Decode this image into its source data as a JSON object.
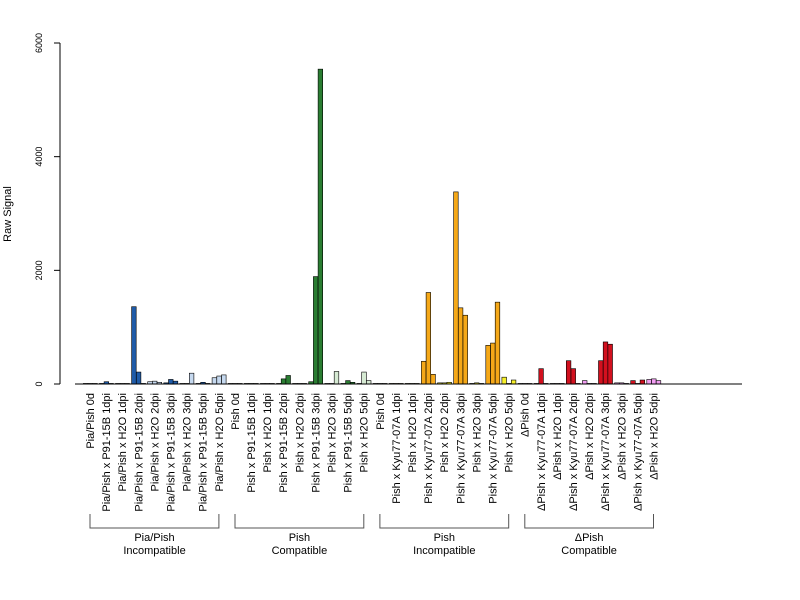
{
  "chart_data": {
    "type": "bar",
    "ylabel": "Raw Signal",
    "xlabel": "",
    "ylim": [
      0,
      6000
    ],
    "yticks": [
      0,
      2000,
      4000,
      6000
    ],
    "ytick_labels": [
      "0",
      "2000",
      "4000",
      "6000"
    ],
    "grid": false,
    "categories": [
      "Pia/Pish 0d",
      "Pia/Pish x P91-15B 1dpi",
      "Pia/Pish x H2O 1dpi",
      "Pia/Pish x P91-15B 2dpi",
      "Pia/Pish x H2O 2dpi",
      "Pia/Pish x P91-15B 3dpi",
      "Pia/Pish x H2O 3dpi",
      "Pia/Pish x P91-15B 5dpi",
      "Pia/Pish x H2O 5dpi",
      "Pish 0d",
      "Pish x P91-15B 1dpi",
      "Pish x H2O 1dpi",
      "Pish x P91-15B 2dpi",
      "Pish x H2O 2dpi",
      "Pish x P91-15B 3dpi",
      "Pish x H2O 3dpi",
      "Pish x P91-15B 5dpi",
      "Pish x H2O 5dpi",
      "Pish 0d",
      "Pish x Kyu77-07A 1dpi",
      "Pish x H2O 1dpi",
      "Pish x Kyu77-07A 2dpi",
      "Pish x H2O 2dpi",
      "Pish x Kyu77-07A 3dpi",
      "Pish x H2O 3dpi",
      "Pish x Kyu77-07A 5dpi",
      "Pish x H2O 5dpi",
      "ΔPish 0d",
      "ΔPish x Kyu77-07A 1dpi",
      "ΔPish x H2O 1dpi",
      "ΔPish x Kyu77-07A 2dpi",
      "ΔPish x H2O 2dpi",
      "ΔPish x Kyu77-07A 3dpi",
      "ΔPish x H2O 3dpi",
      "ΔPish x Kyu77-07A 5dpi",
      "ΔPish x H2O 5dpi"
    ],
    "values": [
      [
        10,
        10,
        10
      ],
      [
        10,
        40,
        10
      ],
      [
        10,
        10,
        10
      ],
      [
        1360,
        210,
        10
      ],
      [
        40,
        50,
        30
      ],
      [
        20,
        80,
        50
      ],
      [
        10,
        10,
        190
      ],
      [
        10,
        30,
        10
      ],
      [
        110,
        140,
        160
      ],
      [
        10,
        10,
        10
      ],
      [
        10,
        10,
        10
      ],
      [
        10,
        10,
        10
      ],
      [
        10,
        90,
        150
      ],
      [
        10,
        10,
        10
      ],
      [
        40,
        1890,
        5540
      ],
      [
        10,
        10,
        220
      ],
      [
        10,
        60,
        30
      ],
      [
        10,
        210,
        60
      ],
      [
        10,
        10,
        10
      ],
      [
        10,
        10,
        10
      ],
      [
        10,
        10,
        10
      ],
      [
        400,
        1610,
        170
      ],
      [
        20,
        20,
        30
      ],
      [
        3380,
        1340,
        1210
      ],
      [
        10,
        20,
        10
      ],
      [
        680,
        720,
        1440
      ],
      [
        120,
        10,
        70
      ],
      [
        10,
        10,
        10
      ],
      [
        10,
        270,
        10
      ],
      [
        10,
        10,
        10
      ],
      [
        410,
        270,
        10
      ],
      [
        60,
        10,
        10
      ],
      [
        410,
        740,
        700
      ],
      [
        20,
        20,
        10
      ],
      [
        60,
        10,
        70
      ],
      [
        80,
        90,
        60
      ]
    ],
    "colors": {
      "incompatible_pathogen": "#1f5ba8",
      "incompatible_h2o": "#c6d9ef",
      "compatible_pathogen": "#2a7d32",
      "compatible_h2o": "#d6ead3",
      "pish_incompatible_pathogen": "#f5a818",
      "pish_incompatible_h2o": "#f7f02a",
      "dpish_pathogen": "#d2101e",
      "dpish_h2o": "#f29ef2",
      "baseline": "#999999"
    },
    "category_colors": [
      "baseline",
      "incompatible_pathogen",
      "incompatible_h2o",
      "incompatible_pathogen",
      "incompatible_h2o",
      "incompatible_pathogen",
      "incompatible_h2o",
      "incompatible_pathogen",
      "incompatible_h2o",
      "baseline",
      "compatible_pathogen",
      "compatible_h2o",
      "compatible_pathogen",
      "compatible_h2o",
      "compatible_pathogen",
      "compatible_h2o",
      "compatible_pathogen",
      "compatible_h2o",
      "baseline",
      "pish_incompatible_pathogen",
      "pish_incompatible_h2o",
      "pish_incompatible_pathogen",
      "pish_incompatible_h2o",
      "pish_incompatible_pathogen",
      "pish_incompatible_h2o",
      "pish_incompatible_pathogen",
      "pish_incompatible_h2o",
      "baseline",
      "dpish_pathogen",
      "dpish_h2o",
      "dpish_pathogen",
      "dpish_h2o",
      "dpish_pathogen",
      "dpish_h2o",
      "dpish_pathogen",
      "dpish_h2o"
    ],
    "groups": [
      {
        "line1": "Pia/Pish",
        "line2": "Incompatible",
        "start": 0,
        "end": 8
      },
      {
        "line1": "Pish",
        "line2": "Compatible",
        "start": 9,
        "end": 17
      },
      {
        "line1": "Pish",
        "line2": "Incompatible",
        "start": 18,
        "end": 26
      },
      {
        "line1": "ΔPish",
        "line2": "Compatible",
        "start": 27,
        "end": 35
      }
    ]
  }
}
